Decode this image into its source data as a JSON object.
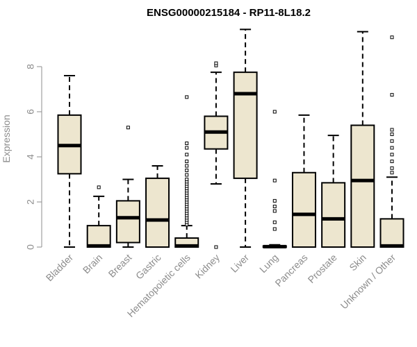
{
  "colors": {
    "box_fill": "#ede6cf",
    "stroke": "#000000",
    "axis": "#8c8c8c"
  },
  "chart_data": {
    "type": "boxplot",
    "title": "ENSG00000215184 - RP11-8L18.2",
    "xlabel": "",
    "ylabel": "Expression",
    "ylim": [
      0,
      10
    ],
    "yticks": [
      0,
      2,
      4,
      6,
      8
    ],
    "grid": false,
    "categories": [
      "Bladder",
      "Brain",
      "Breast",
      "Gastric",
      "Hematopoietic cells",
      "Kidney",
      "Liver",
      "Lung",
      "Pancreas",
      "Prostate",
      "Skin",
      "Unknown / Other"
    ],
    "boxes": [
      {
        "name": "Bladder",
        "whisker_low": 0.0,
        "q1": 3.25,
        "median": 4.5,
        "q3": 5.85,
        "whisker_high": 7.6,
        "outliers": []
      },
      {
        "name": "Brain",
        "whisker_low": 0.0,
        "q1": 0.0,
        "median": 0.05,
        "q3": 0.95,
        "whisker_high": 2.25,
        "outliers": [
          2.65
        ]
      },
      {
        "name": "Breast",
        "whisker_low": 0.0,
        "q1": 0.2,
        "median": 1.3,
        "q3": 2.05,
        "whisker_high": 3.0,
        "outliers": [
          5.3
        ]
      },
      {
        "name": "Gastric",
        "whisker_low": 0.0,
        "q1": 0.0,
        "median": 1.2,
        "q3": 3.05,
        "whisker_high": 3.6,
        "outliers": []
      },
      {
        "name": "Hematopoietic cells",
        "whisker_low": 0.0,
        "q1": 0.0,
        "median": 0.05,
        "q3": 0.4,
        "whisker_high": 0.95,
        "outliers": [
          1.0,
          1.1,
          1.2,
          1.3,
          1.4,
          1.5,
          1.6,
          1.7,
          1.8,
          1.9,
          2.0,
          2.1,
          2.2,
          2.3,
          2.4,
          2.5,
          2.6,
          2.7,
          2.8,
          2.9,
          3.0,
          3.2,
          3.4,
          3.6,
          3.8,
          4.1,
          4.4,
          4.6,
          6.65
        ]
      },
      {
        "name": "Kidney",
        "whisker_low": 2.8,
        "q1": 4.35,
        "median": 5.1,
        "q3": 5.8,
        "whisker_high": 7.75,
        "outliers": [
          0.0,
          8.05,
          8.15
        ]
      },
      {
        "name": "Liver",
        "whisker_low": 0.0,
        "q1": 3.05,
        "median": 6.8,
        "q3": 7.75,
        "whisker_high": 9.65,
        "outliers": []
      },
      {
        "name": "Lung",
        "whisker_low": 0.0,
        "q1": 0.0,
        "median": 0.02,
        "q3": 0.05,
        "whisker_high": 0.1,
        "outliers": [
          0.8,
          1.1,
          1.6,
          1.8,
          2.05,
          2.95,
          6.0
        ]
      },
      {
        "name": "Pancreas",
        "whisker_low": 0.0,
        "q1": 0.0,
        "median": 1.45,
        "q3": 3.3,
        "whisker_high": 5.85,
        "outliers": []
      },
      {
        "name": "Prostate",
        "whisker_low": 0.0,
        "q1": 0.0,
        "median": 1.25,
        "q3": 2.85,
        "whisker_high": 4.95,
        "outliers": []
      },
      {
        "name": "Skin",
        "whisker_low": 0.0,
        "q1": 0.0,
        "median": 2.95,
        "q3": 5.4,
        "whisker_high": 9.55,
        "outliers": []
      },
      {
        "name": "Unknown / Other",
        "whisker_low": 0.0,
        "q1": 0.0,
        "median": 0.05,
        "q3": 1.25,
        "whisker_high": 3.1,
        "outliers": [
          3.3,
          3.5,
          3.8,
          4.1,
          4.4,
          4.7,
          5.0,
          5.2,
          6.75,
          9.3
        ]
      }
    ]
  }
}
